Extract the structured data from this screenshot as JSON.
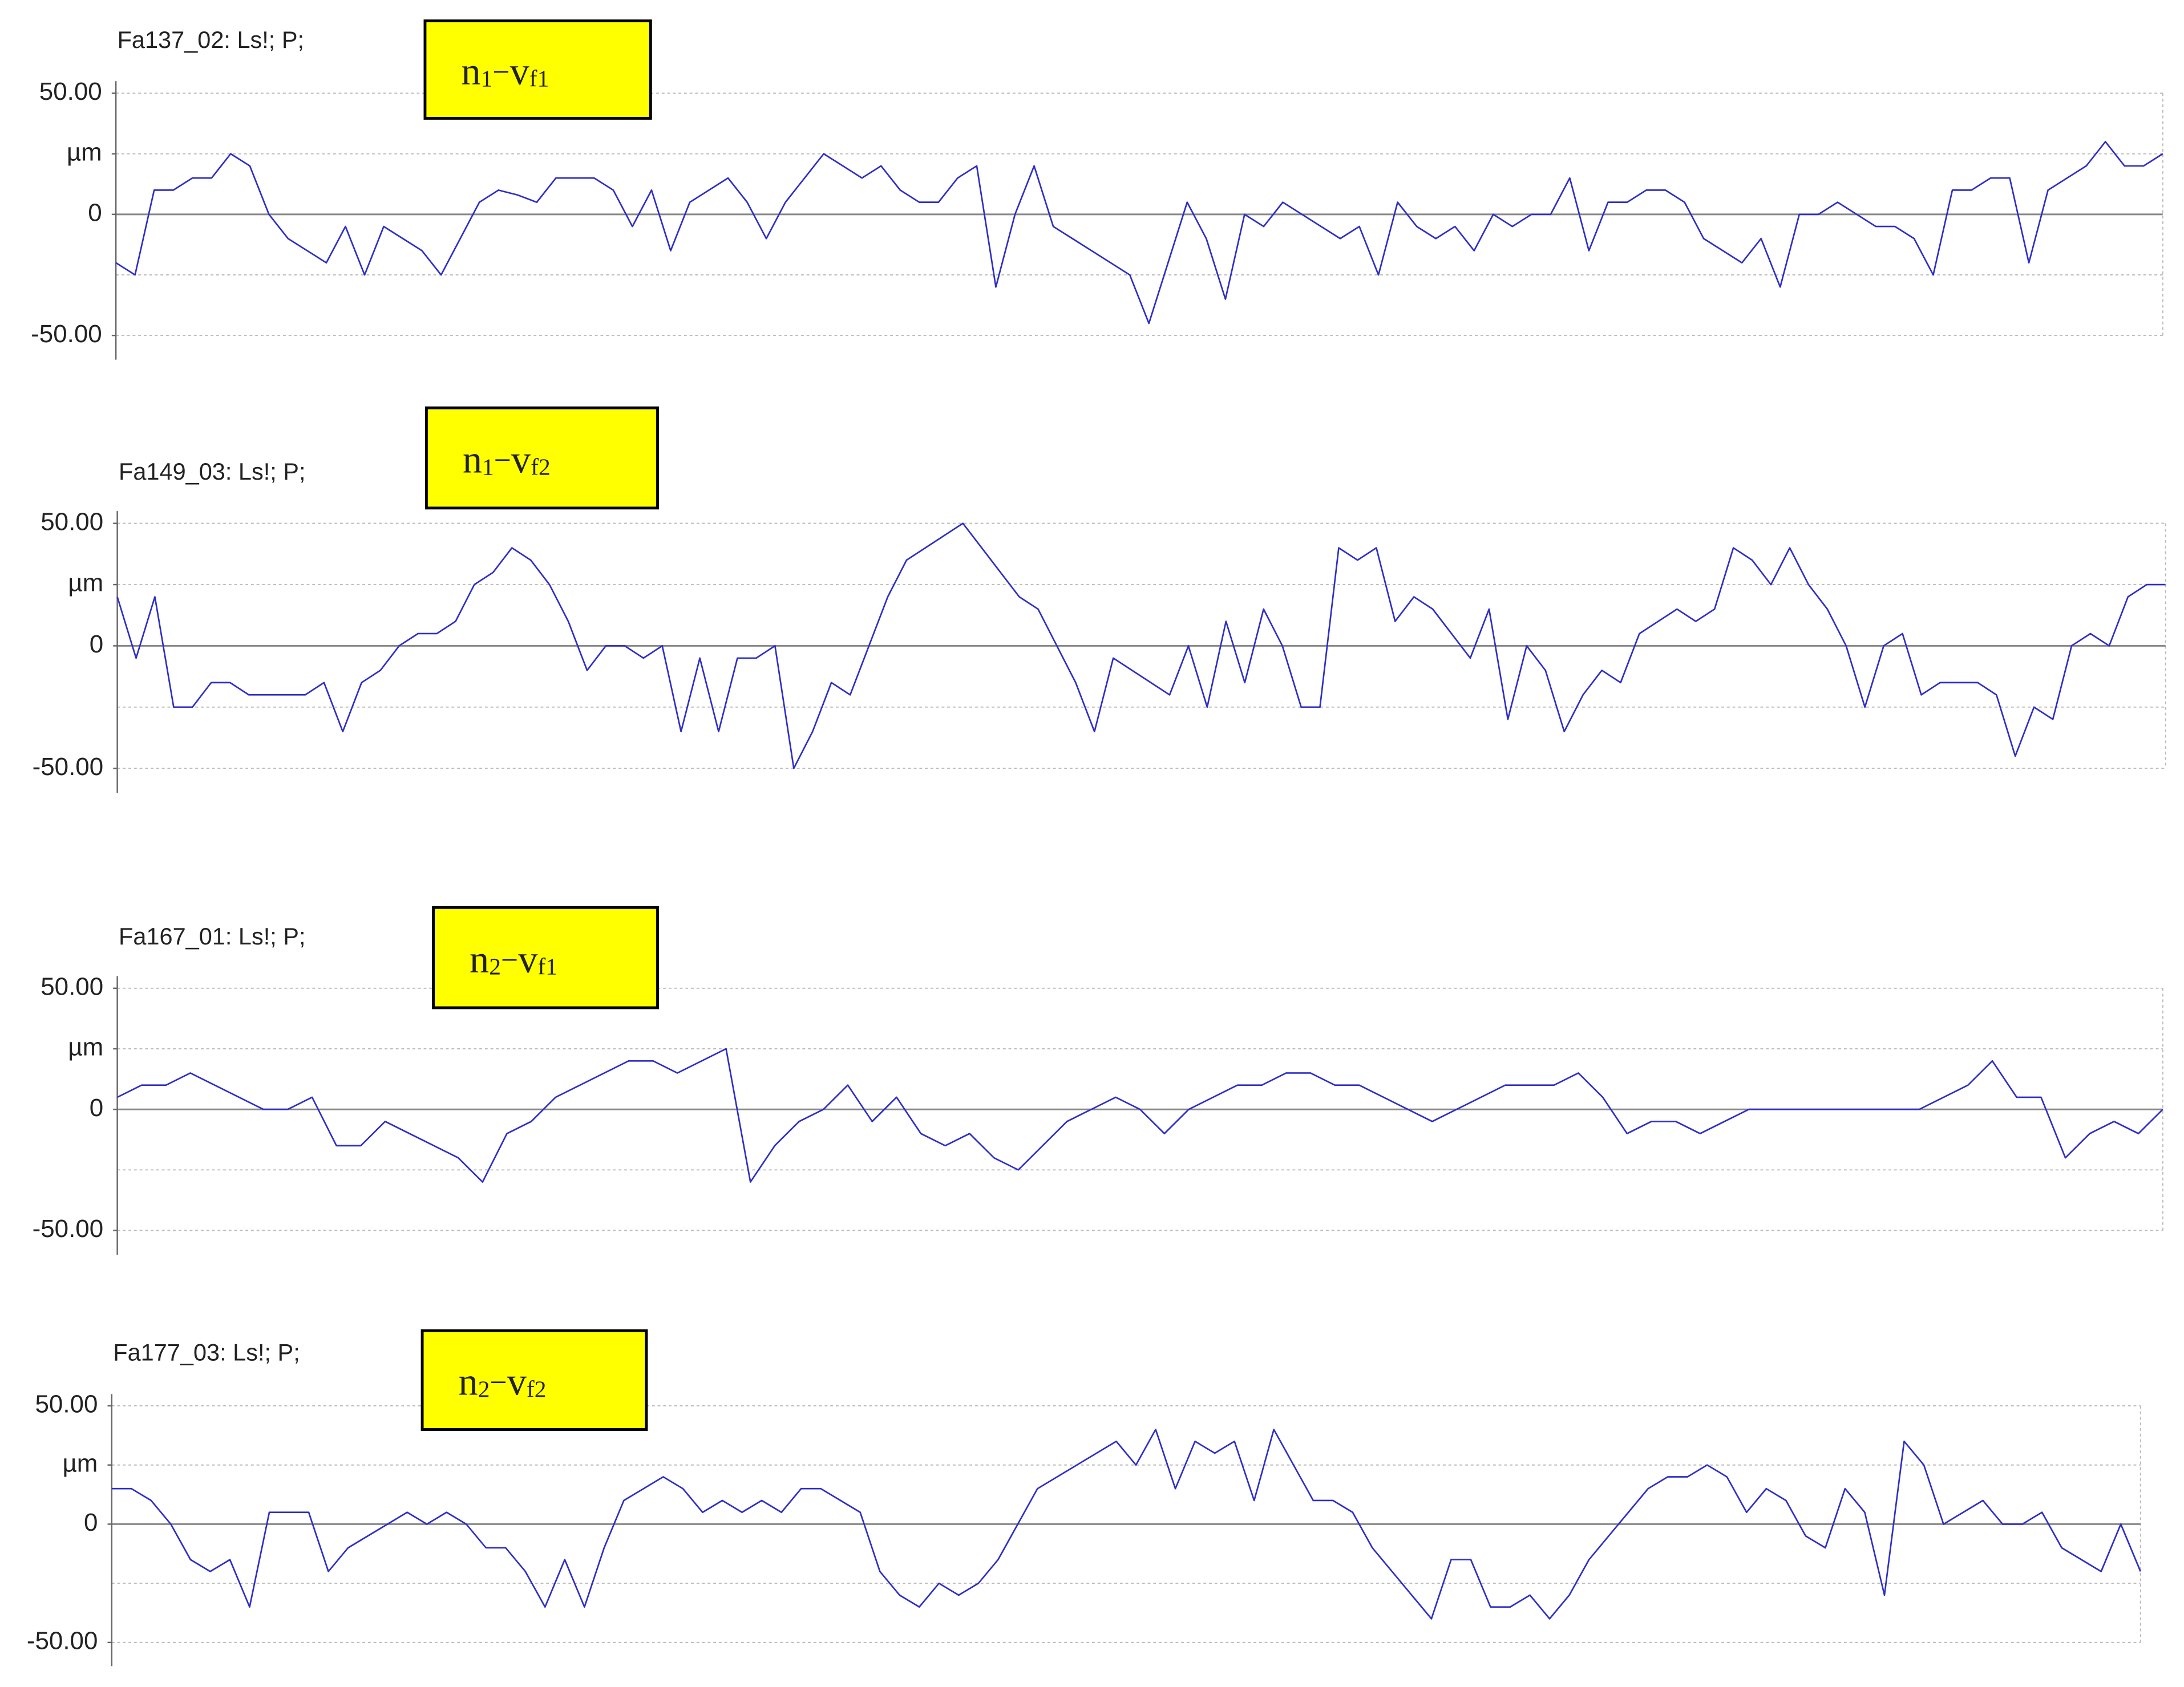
{
  "chart_data": [
    {
      "type": "line",
      "title": "Fa137_02: Ls!; P;",
      "tag": {
        "base": "n",
        "base_sub": "1",
        "sep": "−",
        "var": "v",
        "var_sub": "f1"
      },
      "ylim": [
        -60,
        55
      ],
      "yticks": [
        {
          "value": 50,
          "label": "50.00"
        },
        {
          "value": 25,
          "label": "µm"
        },
        0,
        {
          "value": -50,
          "label": "-50.00"
        }
      ],
      "grid_step": 25,
      "series": [
        {
          "color": "#2e2ec8",
          "values": [
            -20,
            -25,
            10,
            10,
            15,
            15,
            25,
            20,
            0,
            -10,
            -15,
            -20,
            -5,
            -25,
            -5,
            -10,
            -15,
            -25,
            -10,
            5,
            10,
            8,
            5,
            15,
            15,
            15,
            10,
            -5,
            10,
            -15,
            5,
            10,
            15,
            5,
            -10,
            5,
            15,
            25,
            20,
            15,
            20,
            10,
            5,
            5,
            15,
            20,
            -30,
            0,
            20,
            -5,
            -10,
            -15,
            -20,
            -25,
            -45,
            -20,
            5,
            -10,
            -35,
            0,
            -5,
            5,
            0,
            -5,
            -10,
            -5,
            -25,
            5,
            -5,
            -10,
            -5,
            -15,
            0,
            -5,
            0,
            0,
            15,
            -15,
            5,
            5,
            10,
            10,
            5,
            -10,
            -15,
            -20,
            -10,
            -30,
            0,
            0,
            5,
            0,
            -5,
            -5,
            -10,
            -25,
            10,
            10,
            15,
            15,
            -20,
            10,
            15,
            20,
            30,
            20,
            20,
            25
          ]
        }
      ]
    },
    {
      "type": "line",
      "title": "Fa149_03: Ls!; P;",
      "tag": {
        "base": "n",
        "base_sub": "1",
        "sep": "−",
        "var": "v",
        "var_sub": "f2"
      },
      "ylim": [
        -60,
        55
      ],
      "yticks": [
        {
          "value": 50,
          "label": "50.00"
        },
        {
          "value": 25,
          "label": "µm"
        },
        0,
        {
          "value": -50,
          "label": "-50.00"
        }
      ],
      "grid_step": 25,
      "series": [
        {
          "color": "#2e2ec8",
          "values": [
            20,
            -5,
            20,
            -25,
            -25,
            -15,
            -15,
            -20,
            -20,
            -20,
            -20,
            -15,
            -35,
            -15,
            -10,
            0,
            5,
            5,
            10,
            25,
            30,
            40,
            35,
            25,
            10,
            -10,
            0,
            0,
            -5,
            0,
            -35,
            -5,
            -35,
            -5,
            -5,
            0,
            -50,
            -35,
            -15,
            -20,
            0,
            20,
            35,
            40,
            45,
            50,
            40,
            30,
            20,
            15,
            0,
            -15,
            -35,
            -5,
            -10,
            -15,
            -20,
            0,
            -25,
            10,
            -15,
            15,
            0,
            -25,
            -25,
            40,
            35,
            40,
            10,
            20,
            15,
            5,
            -5,
            15,
            -30,
            0,
            -10,
            -35,
            -20,
            -10,
            -15,
            5,
            10,
            15,
            10,
            15,
            40,
            35,
            25,
            40,
            25,
            15,
            0,
            -25,
            0,
            5,
            -20,
            -15,
            -15,
            -15,
            -20,
            -45,
            -25,
            -30,
            0,
            5,
            0,
            20,
            25,
            25
          ]
        }
      ]
    },
    {
      "type": "line",
      "title": "Fa167_01: Ls!; P;",
      "tag": {
        "base": "n",
        "base_sub": "2",
        "sep": "−",
        "var": "v",
        "var_sub": "f1"
      },
      "ylim": [
        -60,
        55
      ],
      "yticks": [
        {
          "value": 50,
          "label": "50.00"
        },
        {
          "value": 25,
          "label": "µm"
        },
        0,
        {
          "value": -50,
          "label": "-50.00"
        }
      ],
      "grid_step": 25,
      "series": [
        {
          "color": "#2e2ec8",
          "values": [
            5,
            10,
            10,
            15,
            10,
            5,
            0,
            0,
            5,
            -15,
            -15,
            -5,
            -10,
            -15,
            -20,
            -30,
            -10,
            -5,
            5,
            10,
            15,
            20,
            20,
            15,
            20,
            25,
            -30,
            -15,
            -5,
            0,
            10,
            -5,
            5,
            -10,
            -15,
            -10,
            -20,
            -25,
            -15,
            -5,
            0,
            5,
            0,
            -10,
            0,
            5,
            10,
            10,
            15,
            15,
            10,
            10,
            5,
            0,
            -5,
            0,
            5,
            10,
            10,
            10,
            15,
            5,
            -10,
            -5,
            -5,
            -10,
            -5,
            0,
            0,
            0,
            0,
            0,
            0,
            0,
            0,
            5,
            10,
            20,
            5,
            5,
            -20,
            -10,
            -5,
            -10,
            0
          ]
        }
      ]
    },
    {
      "type": "line",
      "title": "Fa177_03: Ls!; P;",
      "tag": {
        "base": "n",
        "base_sub": "2",
        "sep": "−",
        "var": "v",
        "var_sub": "f2"
      },
      "ylim": [
        -60,
        55
      ],
      "yticks": [
        {
          "value": 50,
          "label": "50.00"
        },
        {
          "value": 25,
          "label": "µm"
        },
        0,
        {
          "value": -50,
          "label": "-50.00"
        }
      ],
      "grid_step": 25,
      "series": [
        {
          "color": "#2e2ec8",
          "values": [
            15,
            15,
            10,
            0,
            -15,
            -20,
            -15,
            -35,
            5,
            5,
            5,
            -20,
            -10,
            -5,
            0,
            5,
            0,
            5,
            0,
            -10,
            -10,
            -20,
            -35,
            -15,
            -35,
            -10,
            10,
            15,
            20,
            15,
            5,
            10,
            5,
            10,
            5,
            15,
            15,
            10,
            5,
            -20,
            -30,
            -35,
            -25,
            -30,
            -25,
            -15,
            0,
            15,
            20,
            25,
            30,
            35,
            25,
            40,
            15,
            35,
            30,
            35,
            10,
            40,
            25,
            10,
            10,
            5,
            -10,
            -20,
            -30,
            -40,
            -15,
            -15,
            -35,
            -35,
            -30,
            -40,
            -30,
            -15,
            -5,
            5,
            15,
            20,
            20,
            25,
            20,
            5,
            15,
            10,
            -5,
            -10,
            15,
            5,
            -30,
            35,
            25,
            0,
            5,
            10,
            0,
            0,
            5,
            -10,
            -15,
            -20,
            0,
            -20
          ]
        }
      ]
    }
  ]
}
